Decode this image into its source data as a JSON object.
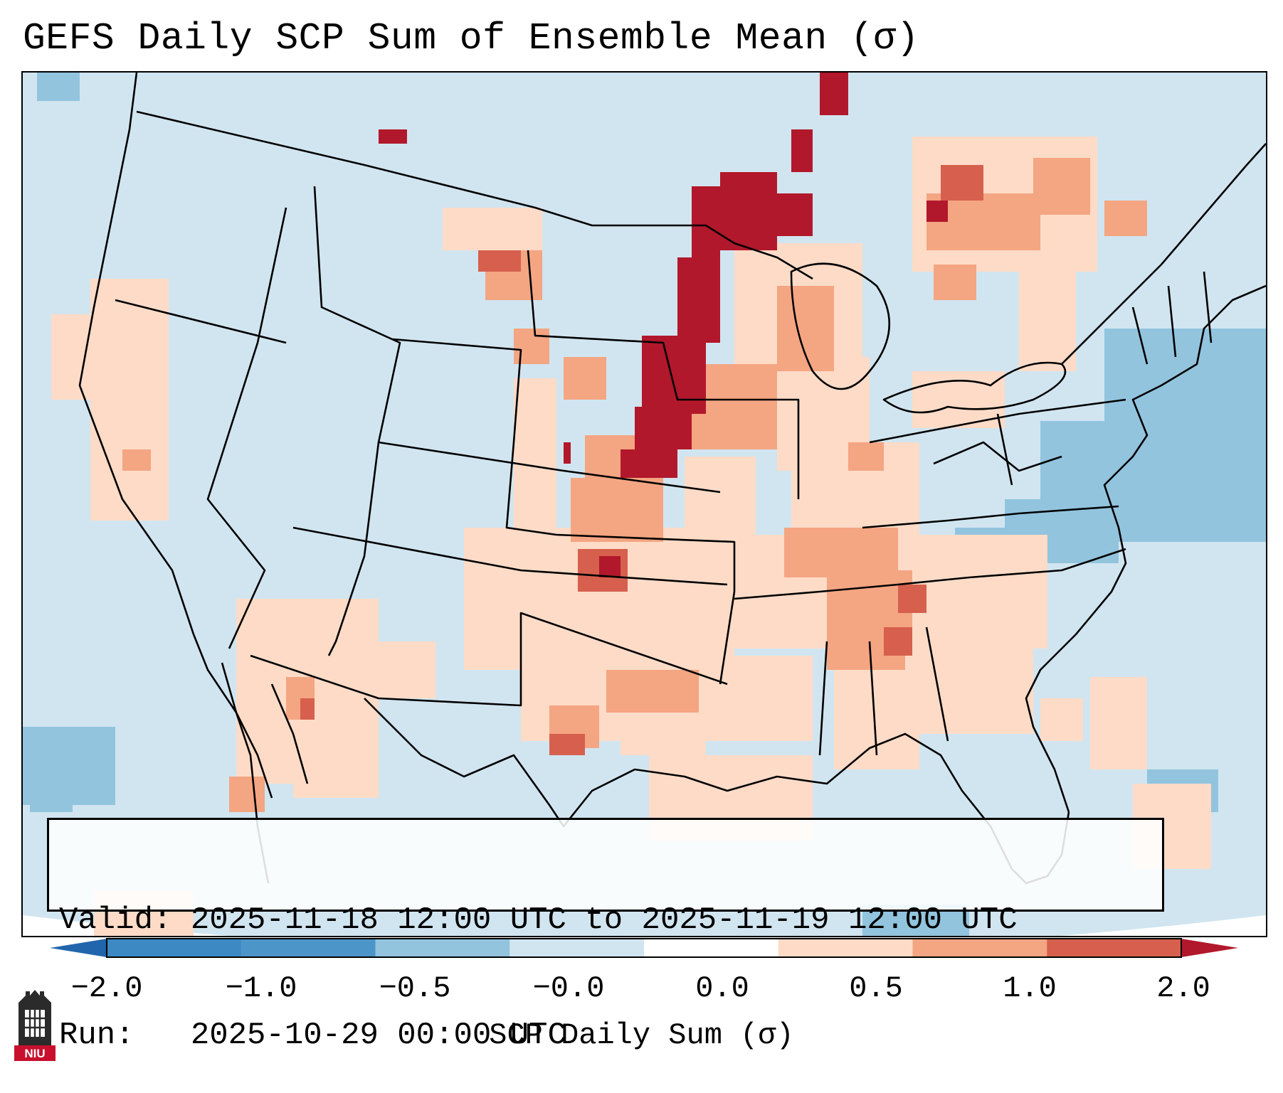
{
  "title": "GEFS Daily SCP Sum of Ensemble Mean (σ)",
  "info": {
    "valid_line": "Valid: 2025-11-18 12:00 UTC to 2025-11-19 12:00 UTC",
    "run_line": "Run:   2025-10-29 00:00 UTC"
  },
  "colorbar": {
    "label": "SCP Daily Sum (σ)",
    "ticks": [
      "−2.0",
      "−1.0",
      "−0.5",
      "−0.0",
      "0.0",
      "0.5",
      "1.0",
      "2.0"
    ],
    "bins": [
      {
        "color": "#3d89c4"
      },
      {
        "color": "#4c95c9"
      },
      {
        "color": "#92c4de"
      },
      {
        "color": "#d1e5f0"
      },
      {
        "color": "#ffffff"
      },
      {
        "color": "#fddbc7"
      },
      {
        "color": "#f4a582"
      },
      {
        "color": "#d6604d"
      }
    ],
    "under_color": "#2166ac",
    "over_color": "#b2182b"
  },
  "map": {
    "background": "#d1e5f0",
    "colors": {
      "neg_strong": "#92c4de",
      "pos_light": "#fddbc7",
      "pos_mid": "#f4a582",
      "pos_high": "#d6604d",
      "pos_extreme": "#b2182b"
    },
    "logo_text": "NIU"
  }
}
